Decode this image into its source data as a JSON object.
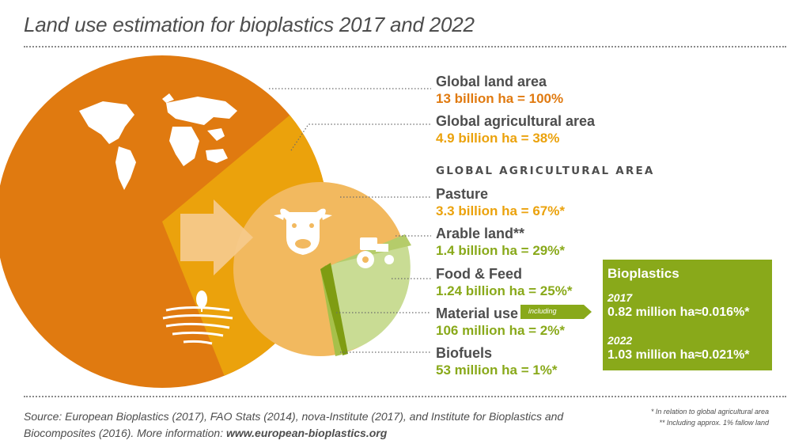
{
  "title": "Land use estimation for bioplastics 2017 and 2022",
  "global_land": {
    "label": "Global land area",
    "value": "13 billion ha = 100%"
  },
  "global_agri": {
    "label": "Global agricultural area",
    "value": "4.9 billion ha = 38%"
  },
  "section_heading": "GLOBAL AGRICULTURAL AREA",
  "categories": [
    {
      "label": "Pasture",
      "value": "3.3 billion ha = 67%*"
    },
    {
      "label": "Arable land**",
      "value": "1.4 billion ha = 29%*"
    },
    {
      "label": "Food & Feed",
      "value": "1.24 billion ha = 25%*"
    },
    {
      "label": "Material use",
      "value": "106 million ha = 2%*"
    },
    {
      "label": "Biofuels",
      "value": "53 million ha = 1%*"
    }
  ],
  "including_label": "including",
  "bioplastics": {
    "title": "Bioplastics",
    "year1": "2017",
    "value1": "0.82 million ha≈0.016%*",
    "year2": "2022",
    "value2": "1.03 million ha≈0.021%*"
  },
  "source": {
    "text": "Source: European Bioplastics (2017), FAO Stats (2014), nova-Institute (2017), and Institute for Bioplastics and Biocomposites (2016). More information: ",
    "link": "www.european-bioplastics.org"
  },
  "footnotes": [
    "* In relation to global agricultural area",
    "** Including approx. 1% fallow land"
  ],
  "icons": [
    "world-map-icon",
    "field-icon",
    "cow-icon",
    "tractor-icon",
    "arrow-icon"
  ],
  "colors": {
    "land": "#e07a10",
    "agri": "#eba20c",
    "pasture_circle": "#f2b95f",
    "arable": "#c6d98b",
    "green": "#89a91a",
    "text_grey": "#4d4d4d"
  }
}
